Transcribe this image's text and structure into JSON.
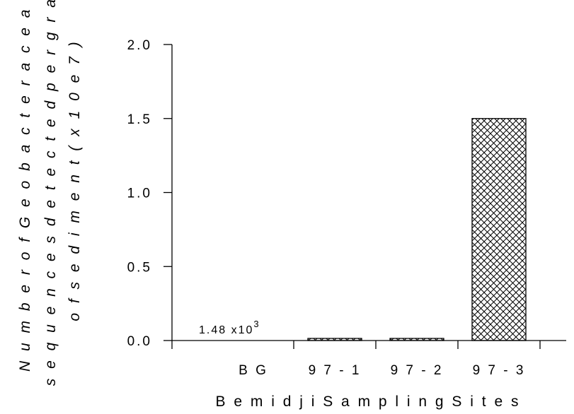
{
  "chart_data": {
    "type": "bar",
    "categories": [
      "BG",
      "97-1",
      "97-2",
      "97-3"
    ],
    "category_labels": [
      "B G",
      "9 7 - 1",
      "9 7 - 2",
      "9 7 - 3"
    ],
    "values": [
      0.000148,
      0.01,
      0.01,
      1.5
    ],
    "ylim": [
      0,
      2.0
    ],
    "yticks": [
      0,
      0.5,
      1.0,
      1.5,
      2.0
    ],
    "ytick_labels": [
      "0.0",
      "0.5",
      "1.0",
      "1.5",
      "2.0"
    ],
    "ylabel_lines": [
      "N u m b e r  o f  G e o b a c t e r a c e a e",
      "s e q u e n c e s  d e t e c t e d  p e r  g r a m",
      "o f  s e d i m e n t  ( x  1 0 e 7 )"
    ],
    "xlabel": "B e m i d j i  S a m p l i n g  S i t e s",
    "annotation": {
      "category": "BG",
      "text": "1.48  x10",
      "superscript": "3"
    },
    "bar_pattern": "crosshatch",
    "bar_color": "#000000",
    "grid": false
  }
}
